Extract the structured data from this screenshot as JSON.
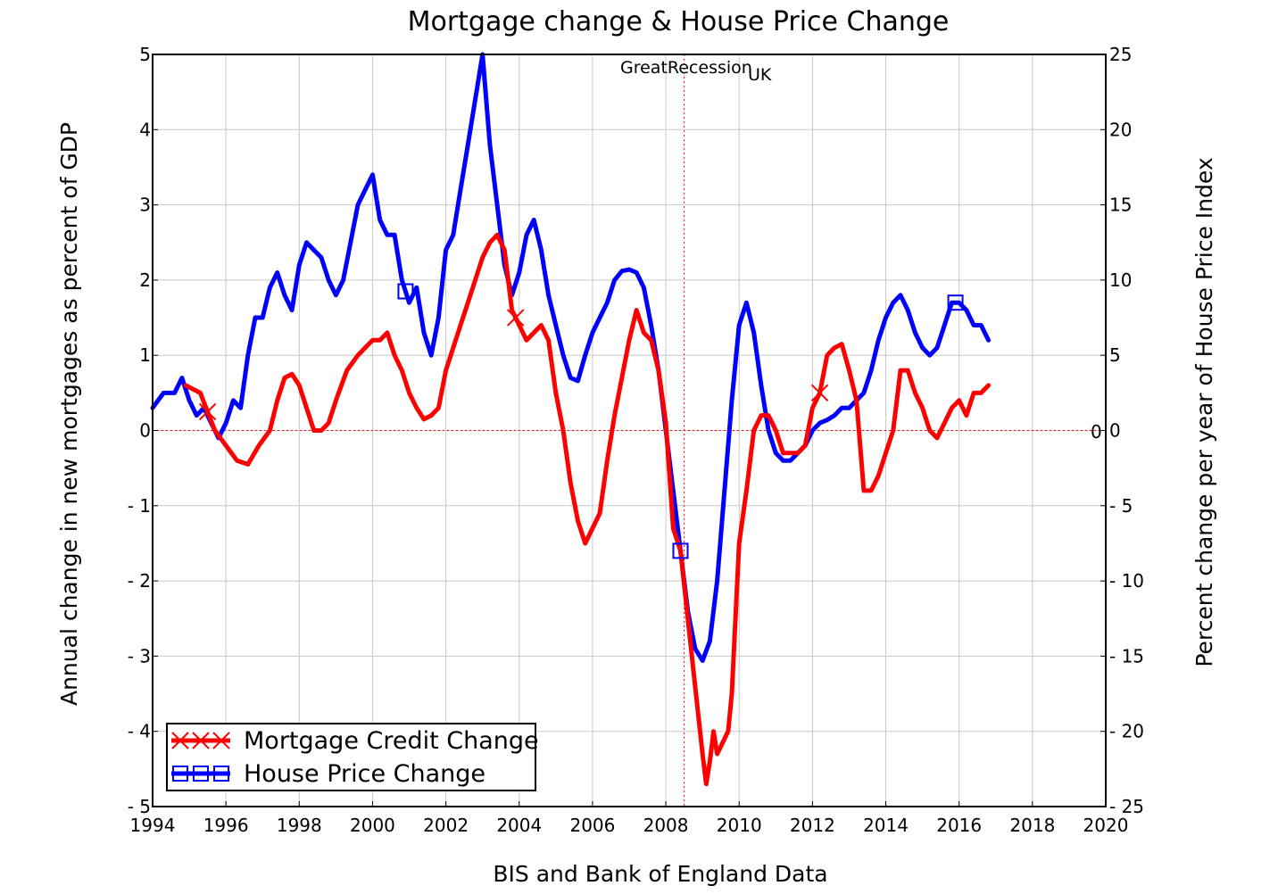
{
  "chart_data": {
    "type": "line",
    "title": "Mortgage change & House Price Change",
    "xlabel": "BIS and Bank of England Data",
    "ylabel_left": "Annual change in new mortgages as percent of GDP",
    "ylabel_right": "Percent change per year of House Price Index",
    "xlim": [
      1994,
      2020
    ],
    "ylim_left": [
      -5,
      5
    ],
    "ylim_right": [
      -25,
      25
    ],
    "x_ticks": [
      1994,
      1996,
      1998,
      2000,
      2002,
      2004,
      2006,
      2008,
      2010,
      2012,
      2014,
      2016,
      2018,
      2020
    ],
    "x_tick_labels": [
      "1994",
      "1996",
      "1998",
      "2000",
      "2002",
      "2004",
      "2006",
      "2008",
      "2010",
      "2012",
      "2014",
      "2016",
      "2018",
      "2020"
    ],
    "y_left_ticks": [
      5,
      4,
      3,
      2,
      1,
      0,
      -1,
      -2,
      -3,
      -4,
      -5
    ],
    "y_left_tick_labels": [
      "5",
      "4",
      "3",
      "2",
      "1",
      "0",
      "- 1",
      "- 2",
      "- 3",
      "- 4",
      "- 5"
    ],
    "y_right_ticks": [
      25,
      20,
      15,
      10,
      5,
      0,
      -5,
      -10,
      -15,
      -20,
      -25
    ],
    "y_right_tick_labels": [
      "25",
      "20",
      "15",
      "10",
      "5",
      "0",
      "- 5",
      "- 10",
      "- 15",
      "- 20",
      "- 25"
    ],
    "grid": true,
    "legend_position": "bottom-left",
    "annotations": {
      "recession_label": "GreatRecession",
      "region_label": "UK",
      "zero_label": "0",
      "recession_year": 2008.5
    },
    "series": [
      {
        "name": "Mortgage Credit Change",
        "axis": "left",
        "color": "#ff0000",
        "marker": "x",
        "markers_at": [
          1995.5,
          2003.9,
          2012.2
        ],
        "x": [
          1994.9,
          1995.3,
          1995.7,
          1996.0,
          1996.3,
          1996.6,
          1996.9,
          1997.2,
          1997.4,
          1997.6,
          1997.8,
          1998.0,
          1998.2,
          1998.4,
          1998.6,
          1998.8,
          1999.0,
          1999.3,
          1999.6,
          1999.8,
          2000.0,
          2000.2,
          2000.4,
          2000.6,
          2000.8,
          2001.0,
          2001.2,
          2001.4,
          2001.6,
          2001.8,
          2002.0,
          2002.2,
          2002.4,
          2002.6,
          2002.8,
          2003.0,
          2003.2,
          2003.4,
          2003.6,
          2003.8,
          2004.0,
          2004.2,
          2004.4,
          2004.6,
          2004.8,
          2005.0,
          2005.2,
          2005.4,
          2005.6,
          2005.8,
          2006.0,
          2006.2,
          2006.4,
          2006.6,
          2006.8,
          2007.0,
          2007.2,
          2007.4,
          2007.6,
          2007.8,
          2008.0,
          2008.2,
          2008.4,
          2008.6,
          2008.8,
          2009.0,
          2009.1,
          2009.2,
          2009.3,
          2009.4,
          2009.5,
          2009.6,
          2009.7,
          2009.8,
          2010.0,
          2010.2,
          2010.4,
          2010.6,
          2010.8,
          2011.0,
          2011.2,
          2011.4,
          2011.6,
          2011.8,
          2012.0,
          2012.2,
          2012.4,
          2012.6,
          2012.8,
          2013.0,
          2013.2,
          2013.4,
          2013.6,
          2013.8,
          2014.0,
          2014.2,
          2014.4,
          2014.6,
          2014.8,
          2015.0,
          2015.2,
          2015.4,
          2015.6,
          2015.8,
          2016.0,
          2016.2,
          2016.4,
          2016.6,
          2016.8
        ],
        "y": [
          0.6,
          0.5,
          0.0,
          -0.2,
          -0.4,
          -0.45,
          -0.2,
          0.0,
          0.4,
          0.7,
          0.75,
          0.6,
          0.3,
          0.0,
          0.0,
          0.1,
          0.4,
          0.8,
          1.0,
          1.1,
          1.2,
          1.2,
          1.3,
          1.0,
          0.8,
          0.5,
          0.3,
          0.15,
          0.2,
          0.3,
          0.8,
          1.1,
          1.4,
          1.7,
          2.0,
          2.3,
          2.5,
          2.6,
          2.4,
          1.6,
          1.4,
          1.2,
          1.3,
          1.4,
          1.2,
          0.5,
          0.0,
          -0.7,
          -1.2,
          -1.5,
          -1.3,
          -1.1,
          -0.4,
          0.2,
          0.7,
          1.2,
          1.6,
          1.3,
          1.2,
          0.8,
          0.1,
          -1.3,
          -1.6,
          -2.5,
          -3.4,
          -4.3,
          -4.7,
          -4.4,
          -4.0,
          -4.3,
          -4.2,
          -4.1,
          -4.0,
          -3.5,
          -1.5,
          -0.8,
          0.0,
          0.2,
          0.2,
          0.0,
          -0.3,
          -0.3,
          -0.3,
          -0.2,
          0.3,
          0.5,
          1.0,
          1.1,
          1.15,
          0.8,
          0.4,
          -0.8,
          -0.8,
          -0.6,
          -0.3,
          0.0,
          0.8,
          0.8,
          0.5,
          0.3,
          0.0,
          -0.1,
          0.1,
          0.3,
          0.4,
          0.2,
          0.5,
          0.5,
          0.6
        ]
      },
      {
        "name": "House Price Change",
        "axis": "right",
        "color": "#0000ff",
        "marker": "square",
        "markers_at": [
          2000.9,
          2008.4,
          2015.9
        ],
        "x": [
          1994.0,
          1994.3,
          1994.6,
          1994.8,
          1995.0,
          1995.2,
          1995.4,
          1995.6,
          1995.8,
          1996.0,
          1996.2,
          1996.4,
          1996.6,
          1996.8,
          1997.0,
          1997.2,
          1997.4,
          1997.6,
          1997.8,
          1998.0,
          1998.2,
          1998.4,
          1998.6,
          1998.8,
          1999.0,
          1999.2,
          1999.4,
          1999.6,
          1999.8,
          2000.0,
          2000.2,
          2000.4,
          2000.6,
          2000.8,
          2001.0,
          2001.2,
          2001.4,
          2001.6,
          2001.8,
          2002.0,
          2002.2,
          2002.4,
          2002.6,
          2002.8,
          2003.0,
          2003.2,
          2003.4,
          2003.6,
          2003.8,
          2004.0,
          2004.2,
          2004.4,
          2004.6,
          2004.8,
          2005.0,
          2005.2,
          2005.4,
          2005.6,
          2005.8,
          2006.0,
          2006.2,
          2006.4,
          2006.6,
          2006.8,
          2007.0,
          2007.2,
          2007.4,
          2007.6,
          2007.8,
          2008.0,
          2008.2,
          2008.4,
          2008.6,
          2008.8,
          2009.0,
          2009.2,
          2009.4,
          2009.6,
          2009.8,
          2010.0,
          2010.2,
          2010.4,
          2010.6,
          2010.8,
          2011.0,
          2011.2,
          2011.4,
          2011.6,
          2011.8,
          2012.0,
          2012.2,
          2012.4,
          2012.6,
          2012.8,
          2013.0,
          2013.2,
          2013.4,
          2013.6,
          2013.8,
          2014.0,
          2014.2,
          2014.4,
          2014.6,
          2014.8,
          2015.0,
          2015.2,
          2015.4,
          2015.6,
          2015.8,
          2016.0,
          2016.2,
          2016.4,
          2016.6,
          2016.8
        ],
        "y": [
          1.5,
          2.5,
          2.5,
          3.5,
          2.0,
          1.0,
          1.5,
          0.5,
          -0.5,
          0.5,
          2.0,
          1.5,
          5.0,
          7.5,
          7.5,
          9.5,
          10.5,
          9.0,
          8.0,
          11.0,
          12.5,
          12.0,
          11.5,
          10.0,
          9.0,
          10.0,
          12.5,
          15.0,
          16.0,
          17.0,
          14.0,
          13.0,
          13.0,
          10.0,
          8.5,
          9.5,
          6.5,
          5.0,
          7.5,
          12.0,
          13.0,
          16.0,
          19.0,
          22.0,
          25.0,
          19.0,
          15.0,
          11.0,
          9.0,
          10.5,
          13.0,
          14.0,
          12.0,
          9.0,
          7.0,
          5.0,
          3.5,
          3.3,
          5.0,
          6.5,
          7.5,
          8.5,
          10.0,
          10.6,
          10.7,
          10.5,
          9.5,
          7.0,
          4.0,
          0.0,
          -4.0,
          -8.0,
          -12.0,
          -14.5,
          -15.3,
          -14.0,
          -10.0,
          -4.0,
          2.0,
          7.0,
          8.5,
          6.5,
          3.0,
          0.0,
          -1.5,
          -2.0,
          -2.0,
          -1.5,
          -1.0,
          0.0,
          0.5,
          0.7,
          1.0,
          1.5,
          1.5,
          2.0,
          2.5,
          4.0,
          6.0,
          7.5,
          8.5,
          9.0,
          8.0,
          6.5,
          5.5,
          5.0,
          5.5,
          7.0,
          8.5,
          8.5,
          8.0,
          7.0,
          7.0,
          6.0
        ]
      }
    ]
  }
}
